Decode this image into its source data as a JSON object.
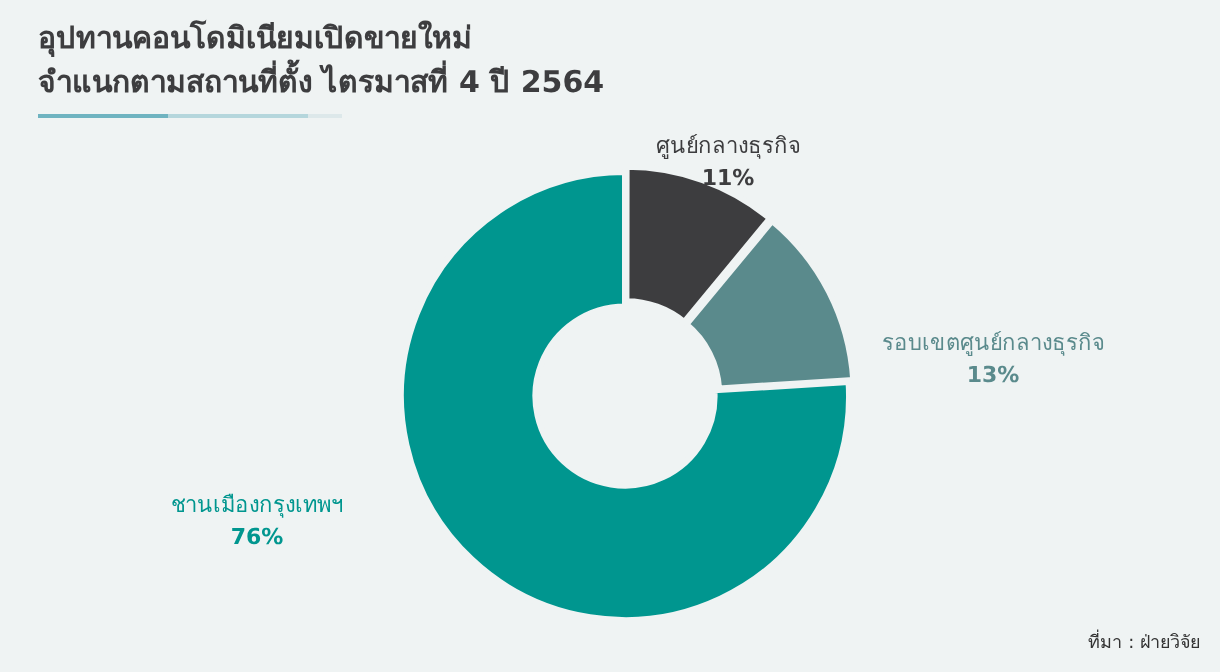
{
  "chart_data": {
    "type": "donut",
    "title": "อุปทานคอนโดมิเนียมเปิดขายใหม่\nจำแนกตามสถานที่ตั้ง ไตรมาสที่ 4 ปี 2564",
    "categories": [
      "ศูนย์กลางธุรกิจ",
      "รอบเขตศูนย์กลางธุรกิจ",
      "ชานเมืองกรุงเทพฯ"
    ],
    "values": [
      11,
      13,
      76
    ],
    "colors": [
      "#3d3d3f",
      "#5a8a8c",
      "#00968f"
    ],
    "value_labels": [
      "11%",
      "13%",
      "76%"
    ],
    "legend": false,
    "annotations": [
      "ที่มา : ฝ่ายวิจัย"
    ]
  }
}
